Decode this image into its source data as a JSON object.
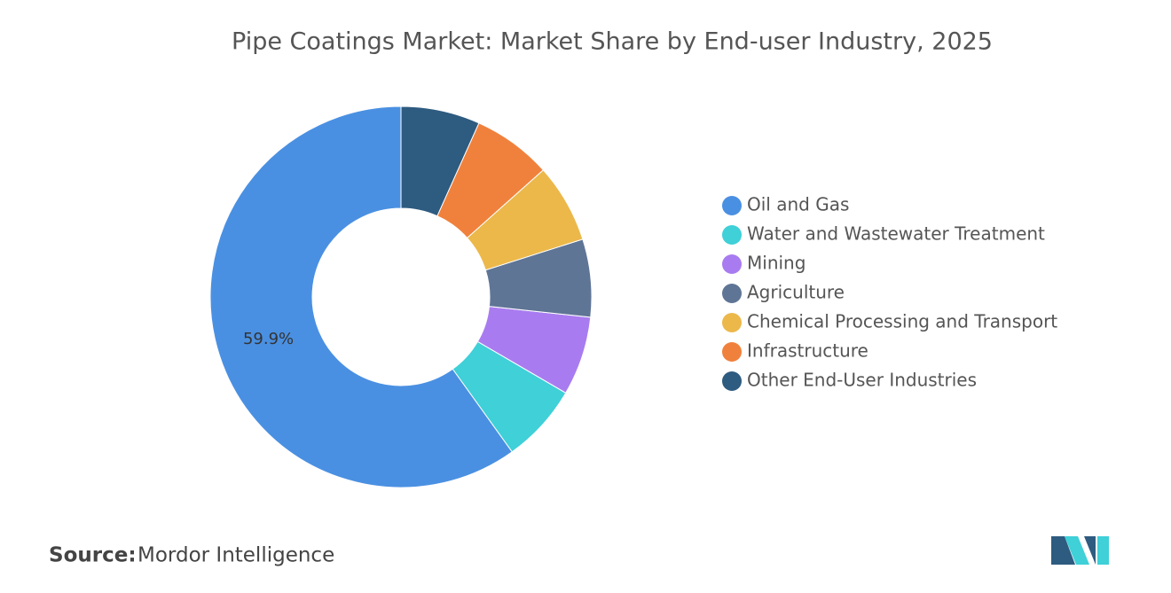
{
  "chart_data": {
    "type": "donut",
    "title": "Pipe Coatings Market: Market Share by End-user Industry, 2025",
    "categories": [
      "Oil and Gas",
      "Water and Wastewater Treatment",
      "Mining",
      "Agriculture",
      "Chemical Processing and Transport",
      "Infrastructure",
      "Other End-User Industries"
    ],
    "values": [
      59.9,
      6.7,
      6.7,
      6.6,
      6.7,
      6.7,
      6.7
    ],
    "value_labels": [
      "59.9%",
      null,
      null,
      null,
      null,
      null,
      null
    ],
    "colors": [
      "#4a90e2",
      "#3fd0d8",
      "#a87cf0",
      "#5f7596",
      "#ecb84a",
      "#f0813c",
      "#2e5b80"
    ],
    "legend": "right"
  },
  "source": {
    "label": "Source:",
    "text": "Mordor Intelligence"
  }
}
